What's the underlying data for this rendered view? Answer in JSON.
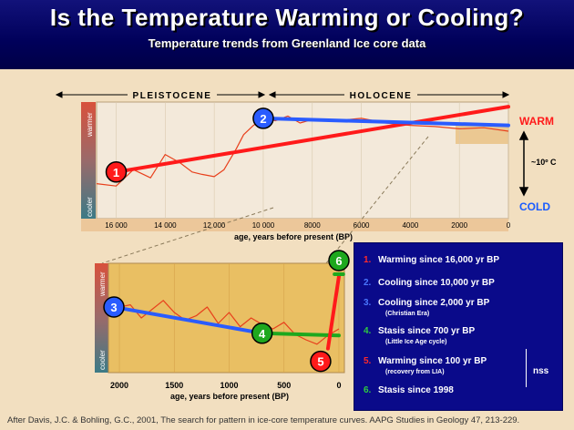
{
  "header": {
    "title": "Is the Temperature Warming or Cooling?",
    "subtitle": "Temperature trends from Greenland Ice core data"
  },
  "top_chart_labels": {
    "pleistocene": "PLEISTOCENE",
    "holocene": "HOLOCENE",
    "warmer": "warmer",
    "cooler": "cooler",
    "warm": "WARM",
    "cold": "COLD",
    "scale": "~10º C"
  },
  "bottom_chart_labels": {
    "warmer": "warmer",
    "cooler": "cooler"
  },
  "legend": {
    "items": [
      {
        "num": "1.",
        "text": "Warming since 16,000 yr BP",
        "color": "#ff2a2a",
        "sub": ""
      },
      {
        "num": "2.",
        "text": "Cooling since 10,000 yr BP",
        "color": "#4a78ff",
        "sub": ""
      },
      {
        "num": "3.",
        "text": "Cooling since 2,000 yr BP",
        "color": "#4a78ff",
        "sub": "(Christian Era)"
      },
      {
        "num": "4.",
        "text": "Stasis since 700 yr BP",
        "color": "#2ecc40",
        "sub": "(Little Ice Age cycle)"
      },
      {
        "num": "5.",
        "text": "Warming since 100 yr BP",
        "color": "#ff2a2a",
        "sub": "(recovery from LIA)"
      },
      {
        "num": "6.",
        "text": "Stasis since 1998",
        "color": "#2ecc40",
        "sub": ""
      }
    ],
    "nss": "nss"
  },
  "citation": "After Davis, J.C. & Bohling, G.C., 2001, The search for pattern in ice-core temperature curves. AAPG Studies in Geology 47, 213-229.",
  "chart_data": [
    {
      "type": "line",
      "title": "",
      "xlabel": "age, years before present (BP)",
      "ylabel": "",
      "x_reversed": true,
      "xlim": [
        16800,
        0
      ],
      "xticks": [
        16000,
        14000,
        12000,
        10000,
        8000,
        6000,
        4000,
        2000,
        0
      ],
      "xtick_labels": [
        "16 000",
        "14 000",
        "12 000",
        "10 000",
        "8000",
        "6000",
        "4000",
        "2000",
        "0"
      ],
      "ylim": [
        0,
        100
      ],
      "series": [
        {
          "x": [
            16800,
            16000,
            15300,
            14600,
            14000,
            13400,
            12900,
            12500,
            12000,
            11600,
            11100,
            10800,
            10400,
            10000,
            9500,
            9000,
            8500,
            8000,
            7000,
            6000,
            5000,
            4000,
            3000,
            2000,
            1000,
            0
          ],
          "values": [
            30,
            28,
            42,
            35,
            55,
            48,
            40,
            38,
            36,
            42,
            60,
            72,
            80,
            86,
            84,
            88,
            82,
            85,
            84,
            86,
            82,
            80,
            79,
            77,
            78,
            75
          ],
          "color": "#e8401c"
        }
      ],
      "trends": [
        {
          "label": "1",
          "x": [
            16000,
            0
          ],
          "values": [
            40,
            96
          ],
          "color": "#ff1a1a"
        },
        {
          "label": "2",
          "x": [
            10000,
            0
          ],
          "values": [
            86,
            80
          ],
          "color": "#2a5cff"
        }
      ],
      "eras": [
        {
          "label": "PLEISTOCENE",
          "from": 16800,
          "to": 10000
        },
        {
          "label": "HOLOCENE",
          "from": 10000,
          "to": 0
        }
      ]
    },
    {
      "type": "line",
      "title": "",
      "xlabel": "age, years before present (BP)",
      "ylabel": "",
      "x_reversed": true,
      "xlim": [
        2100,
        -50
      ],
      "xticks": [
        2000,
        1500,
        1000,
        500,
        0
      ],
      "xtick_labels": [
        "2000",
        "1500",
        "1000",
        "500",
        "0"
      ],
      "ylim": [
        0,
        100
      ],
      "series": [
        {
          "x": [
            2000,
            1900,
            1800,
            1700,
            1600,
            1500,
            1400,
            1300,
            1200,
            1100,
            1000,
            900,
            800,
            700,
            600,
            500,
            400,
            300,
            200,
            100,
            0
          ],
          "values": [
            60,
            62,
            50,
            58,
            66,
            55,
            48,
            52,
            60,
            45,
            55,
            42,
            50,
            44,
            40,
            46,
            35,
            30,
            26,
            34,
            40
          ],
          "color": "#e8401c"
        }
      ],
      "trends": [
        {
          "label": "3",
          "x": [
            2050,
            700
          ],
          "values": [
            60,
            36
          ],
          "color": "#2a5cff"
        },
        {
          "label": "4",
          "x": [
            700,
            0
          ],
          "values": [
            36,
            34
          ],
          "color": "#1ea81e"
        },
        {
          "label": "5",
          "x": [
            100,
            0
          ],
          "values": [
            22,
            88
          ],
          "color": "#ff1a1a"
        },
        {
          "label": "6",
          "x": [
            40,
            -40
          ],
          "values": [
            90,
            90
          ],
          "color": "#1ea81e"
        }
      ]
    }
  ],
  "colors": {
    "header_bg": "#00005a",
    "slide_bg": "#f2dfc0",
    "plot_bg": "#e9bf63",
    "curve": "#e8401c",
    "warm_label": "#ff1a1a",
    "cold_label": "#1a5cff"
  }
}
